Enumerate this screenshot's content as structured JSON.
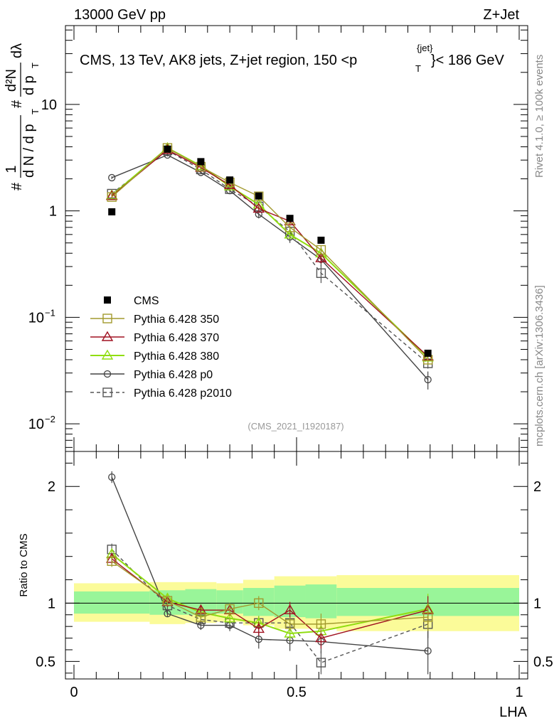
{
  "header": {
    "left": "13000 GeV pp",
    "right": "Z+Jet"
  },
  "title": "CMS, 13 TeV, AK8 jets, Z+jet region, 150 <p",
  "title_sup": "{jet}",
  "title_sub": "T",
  "title_end": "}< 186 GeV",
  "side_text_top": "Rivet 4.1.0, ≥ 100k events",
  "side_text_bottom": "mcplots.cern.ch [arXiv:1306.3436]",
  "analysis_id": "(CMS_2021_I1920187)",
  "ylabel_top": {
    "prefix": "#",
    "frac1_num": "1",
    "frac1_den": "d N / d p",
    "frac1_den_sub": "T",
    "hash2": "#",
    "frac2_num": "d²N",
    "frac2_den": "d p",
    "frac2_den_sub": "T",
    "dlambda": "dλ"
  },
  "ylabel_bottom": "Ratio to CMS",
  "xlabel": "LHA",
  "colors": {
    "cms": "#000000",
    "p350": "#a29a2e",
    "p370": "#a01020",
    "p380": "#90dd10",
    "p0": "#444444",
    "p2010": "#555555",
    "band_inner": "#99f599",
    "band_outer": "#fbfb99"
  },
  "chart_data": [
    {
      "type": "line",
      "panel": "main",
      "yscale": "log",
      "xlim": [
        0,
        1
      ],
      "ylim": [
        0.0055,
        55
      ],
      "yticks": [
        {
          "v": 0.01,
          "label": "10",
          "exp": "−2"
        },
        {
          "v": 0.1,
          "label": "10",
          "exp": "−1"
        },
        {
          "v": 1,
          "label": "1",
          "exp": ""
        },
        {
          "v": 10,
          "label": "10",
          "exp": ""
        }
      ],
      "x": [
        0.085,
        0.21,
        0.285,
        0.35,
        0.415,
        0.485,
        0.555,
        0.795
      ],
      "cms": {
        "name": "CMS",
        "values": [
          0.98,
          3.8,
          2.9,
          1.95,
          1.38,
          0.85,
          0.53,
          0.046
        ]
      },
      "series": [
        {
          "name": "Pythia 6.428 350",
          "key": "p350",
          "marker": "square",
          "dash": false,
          "values": [
            1.35,
            3.9,
            2.6,
            1.85,
            1.37,
            0.7,
            0.43,
            0.04
          ],
          "errors": [
            0.05,
            0.1,
            0.08,
            0.06,
            0.05,
            0.04,
            0.04,
            0.004
          ]
        },
        {
          "name": "Pythia 6.428 370",
          "key": "p370",
          "marker": "triangle",
          "dash": false,
          "values": [
            1.38,
            3.75,
            2.55,
            1.75,
            1.05,
            0.8,
            0.36,
            0.043
          ],
          "errors": [
            0.05,
            0.1,
            0.08,
            0.06,
            0.06,
            0.05,
            0.04,
            0.004
          ]
        },
        {
          "name": "Pythia 6.428 380",
          "key": "p380",
          "marker": "triangle",
          "dash": false,
          "values": [
            1.4,
            3.9,
            2.65,
            1.7,
            1.15,
            0.6,
            0.4,
            0.042
          ],
          "errors": [
            0.05,
            0.1,
            0.08,
            0.06,
            0.05,
            0.04,
            0.04,
            0.004
          ]
        },
        {
          "name": "Pythia 6.428 p0",
          "key": "p0",
          "marker": "circle",
          "dash": false,
          "values": [
            2.05,
            3.35,
            2.3,
            1.55,
            0.93,
            0.57,
            0.35,
            0.026
          ],
          "errors": [
            0.06,
            0.1,
            0.07,
            0.06,
            0.08,
            0.07,
            0.05,
            0.005
          ]
        },
        {
          "name": "Pythia 6.428 p2010",
          "key": "p2010",
          "marker": "square",
          "dash": true,
          "values": [
            1.45,
            3.7,
            2.45,
            1.6,
            1.1,
            0.64,
            0.26,
            0.037
          ],
          "errors": [
            0.05,
            0.1,
            0.08,
            0.06,
            0.05,
            0.05,
            0.05,
            0.004
          ]
        }
      ]
    },
    {
      "type": "line",
      "panel": "ratio",
      "xlim": [
        0,
        1
      ],
      "ylim": [
        0.35,
        2.3
      ],
      "yticks": [
        0.5,
        1,
        2
      ],
      "xticks": [
        0,
        0.5,
        1
      ],
      "x": [
        0.085,
        0.21,
        0.285,
        0.35,
        0.415,
        0.485,
        0.555,
        0.795
      ],
      "bands": [
        {
          "x0": 0.0,
          "x1": 0.17,
          "inner": [
            0.91,
            1.1
          ],
          "outer": [
            0.84,
            1.17
          ]
        },
        {
          "x0": 0.17,
          "x1": 0.25,
          "inner": [
            0.9,
            1.11
          ],
          "outer": [
            0.82,
            1.18
          ]
        },
        {
          "x0": 0.25,
          "x1": 0.32,
          "inner": [
            0.9,
            1.12
          ],
          "outer": [
            0.83,
            1.18
          ]
        },
        {
          "x0": 0.32,
          "x1": 0.38,
          "inner": [
            0.91,
            1.11
          ],
          "outer": [
            0.84,
            1.17
          ]
        },
        {
          "x0": 0.38,
          "x1": 0.45,
          "inner": [
            0.89,
            1.13
          ],
          "outer": [
            0.81,
            1.2
          ]
        },
        {
          "x0": 0.45,
          "x1": 0.52,
          "inner": [
            0.88,
            1.15
          ],
          "outer": [
            0.78,
            1.23
          ]
        },
        {
          "x0": 0.52,
          "x1": 0.59,
          "inner": [
            0.87,
            1.16
          ],
          "outer": [
            0.78,
            1.23
          ]
        },
        {
          "x0": 0.59,
          "x1": 1.0,
          "inner": [
            0.89,
            1.13
          ],
          "outer": [
            0.76,
            1.24
          ]
        }
      ],
      "series": [
        {
          "name": "Pythia 6.428 350",
          "key": "p350",
          "marker": "square",
          "dash": false,
          "values": [
            1.36,
            1.02,
            0.88,
            0.95,
            1.0,
            0.82,
            0.82,
            0.88
          ],
          "errors": [
            0.05,
            0.04,
            0.04,
            0.05,
            0.06,
            0.06,
            0.09,
            0.12
          ]
        },
        {
          "name": "Pythia 6.428 370",
          "key": "p370",
          "marker": "triangle",
          "dash": false,
          "values": [
            1.38,
            1.01,
            0.94,
            0.94,
            0.78,
            0.94,
            0.7,
            0.94
          ],
          "errors": [
            0.05,
            0.04,
            0.04,
            0.05,
            0.06,
            0.07,
            0.09,
            0.12
          ]
        },
        {
          "name": "Pythia 6.428 380",
          "key": "p380",
          "marker": "triangle",
          "dash": false,
          "values": [
            1.42,
            1.04,
            0.92,
            0.87,
            0.83,
            0.74,
            0.76,
            0.95
          ],
          "errors": [
            0.05,
            0.04,
            0.04,
            0.05,
            0.06,
            0.06,
            0.09,
            0.13
          ]
        },
        {
          "name": "Pythia 6.428 p0",
          "key": "p0",
          "marker": "circle",
          "dash": false,
          "values": [
            2.08,
            0.91,
            0.81,
            0.81,
            0.69,
            0.68,
            0.67,
            0.59
          ],
          "errors": [
            0.05,
            0.03,
            0.04,
            0.05,
            0.08,
            0.09,
            0.1,
            0.2
          ]
        },
        {
          "name": "Pythia 6.428 p2010",
          "key": "p2010",
          "marker": "square",
          "dash": true,
          "values": [
            1.46,
            0.98,
            0.86,
            0.83,
            0.83,
            0.83,
            0.49,
            0.82
          ],
          "errors": [
            0.05,
            0.04,
            0.04,
            0.05,
            0.06,
            0.07,
            0.1,
            0.12
          ]
        }
      ]
    }
  ]
}
